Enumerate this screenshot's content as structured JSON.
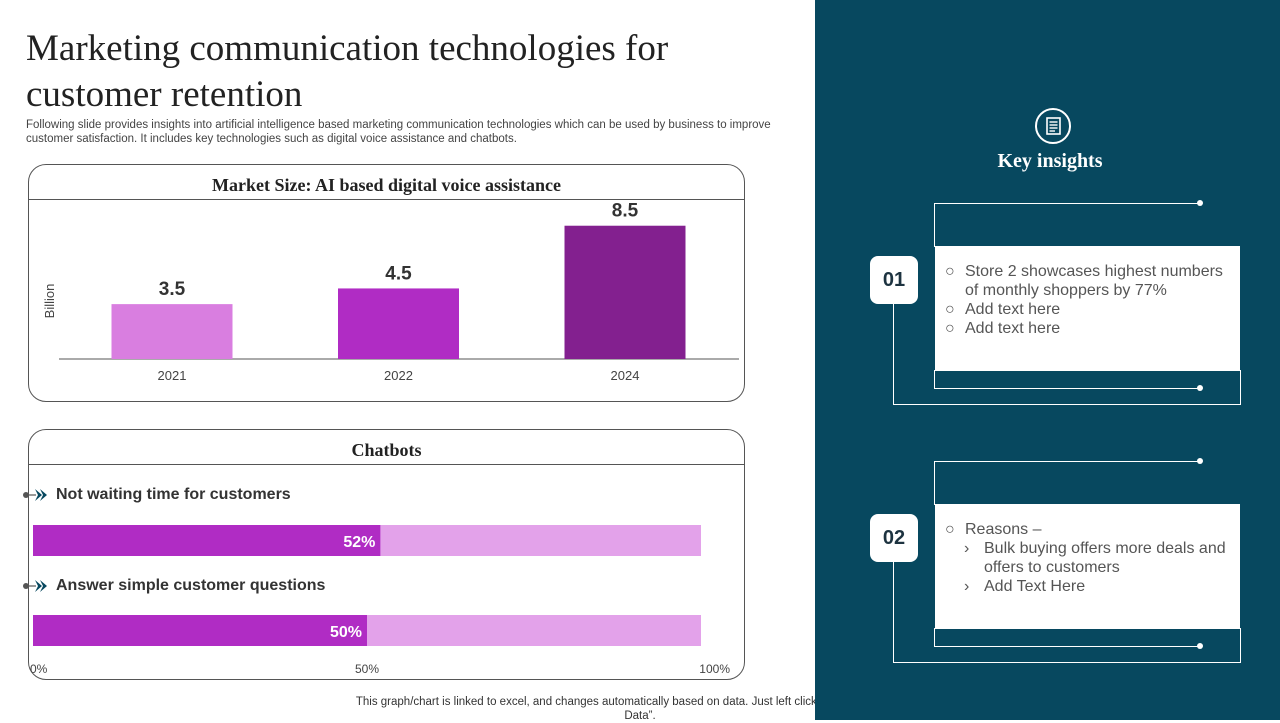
{
  "page": {
    "title": "Marketing communication technologies for customer retention",
    "subtitle": "Following slide provides insights into artificial intelligence based marketing communication technologies which can be used by business to improve customer satisfaction. It includes key technologies such as digital voice assistance and chatbots.",
    "footer": "This graph/chart is linked to excel,  and changes automatically based on data. Just left click on it and select “Edit Data”."
  },
  "chart_data": [
    {
      "type": "bar",
      "title": "Market Size: AI based digital voice assistance",
      "ylabel": "Billion",
      "xlabel": "",
      "categories": [
        "2021",
        "2022",
        "2024"
      ],
      "values": [
        3.5,
        4.5,
        8.5
      ],
      "value_labels": [
        "3.5",
        "4.5",
        "8.5"
      ],
      "colors": [
        "#d97ee0",
        "#b02cc4",
        "#83208f"
      ],
      "ylim": [
        0,
        10
      ]
    },
    {
      "type": "bar",
      "orientation": "horizontal-stacked-percent",
      "title": "Chatbots",
      "categories": [
        "Not waiting time for customers",
        "Answer simple customer questions"
      ],
      "values": [
        52,
        50
      ],
      "value_labels": [
        "52%",
        "50%"
      ],
      "xlim": [
        0,
        100
      ],
      "ticks": [
        0,
        50,
        100
      ],
      "tick_labels": [
        "0%",
        "50%",
        "100%"
      ],
      "bar_color": "#b02cc4",
      "remainder_color": "#e3a2ea"
    }
  ],
  "insights": {
    "heading": "Key insights",
    "icon": "document-icon",
    "items": [
      {
        "number": "01",
        "bullets": [
          {
            "marker": "○",
            "text": "Store 2 showcases highest numbers of monthly  shoppers by 77%"
          },
          {
            "marker": "○",
            "text": "Add text here"
          },
          {
            "marker": "○",
            "text": "Add text here"
          }
        ]
      },
      {
        "number": "02",
        "bullets": [
          {
            "marker": "○",
            "text": "Reasons –"
          },
          {
            "marker": "›",
            "text": "Bulk buying offers more deals and offers to customers",
            "sub": true
          },
          {
            "marker": "›",
            "text": "Add Text Here",
            "sub": true
          }
        ]
      }
    ]
  },
  "colors": {
    "accent_dark": "#07485f",
    "bar_light": "#d97ee0",
    "bar_mid": "#b02cc4",
    "bar_dark": "#83208f",
    "bar_remainder": "#e3a2ea"
  }
}
